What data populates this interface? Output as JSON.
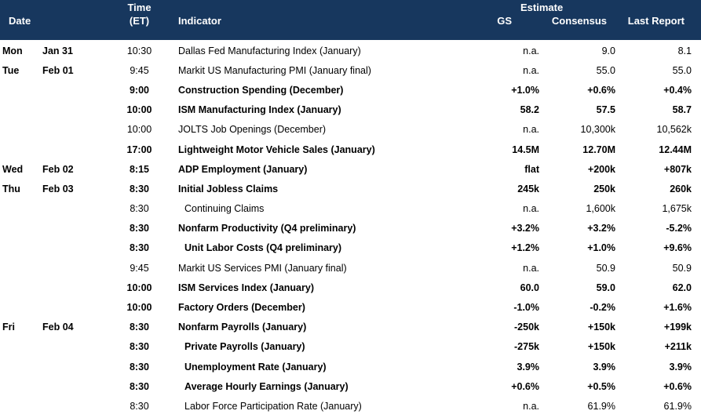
{
  "header": {
    "date": "Date",
    "time_line1": "Time",
    "time_line2": "(ET)",
    "indicator": "Indicator",
    "estimate": "Estimate",
    "gs": "GS",
    "consensus": "Consensus",
    "last_report": "Last Report"
  },
  "rows": [
    {
      "day": "Mon",
      "date": "Jan 31",
      "time": "10:30",
      "indicator": "Dallas Fed Manufacturing Index (January)",
      "gs": "n.a.",
      "consensus": "9.0",
      "last": "8.1"
    },
    {
      "day": "Tue",
      "date": "Feb 01",
      "time": "9:45",
      "indicator": "Markit US Manufacturing PMI (January final)",
      "gs": "n.a.",
      "consensus": "55.0",
      "last": "55.0"
    },
    {
      "day": "",
      "date": "",
      "time": "9:00",
      "indicator": "Construction Spending (December)",
      "gs": "+1.0%",
      "consensus": "+0.6%",
      "last": "+0.4%"
    },
    {
      "day": "",
      "date": "",
      "time": "10:00",
      "indicator": "ISM Manufacturing Index (January)",
      "gs": "58.2",
      "consensus": "57.5",
      "last": "58.7"
    },
    {
      "day": "",
      "date": "",
      "time": "10:00",
      "indicator": "JOLTS Job Openings (December)",
      "gs": "n.a.",
      "consensus": "10,300k",
      "last": "10,562k"
    },
    {
      "day": "",
      "date": "",
      "time": "17:00",
      "indicator": "Lightweight Motor Vehicle Sales (January)",
      "gs": "14.5M",
      "consensus": "12.70M",
      "last": "12.44M"
    },
    {
      "day": "Wed",
      "date": "Feb 02",
      "time": "8:15",
      "indicator": "ADP Employment (January)",
      "gs": "flat",
      "consensus": "+200k",
      "last": "+807k"
    },
    {
      "day": "Thu",
      "date": "Feb 03",
      "time": "8:30",
      "indicator": "Initial Jobless Claims",
      "gs": "245k",
      "consensus": "250k",
      "last": "260k"
    },
    {
      "day": "",
      "date": "",
      "time": "8:30",
      "indicator": "Continuing Claims",
      "gs": "n.a.",
      "consensus": "1,600k",
      "last": "1,675k"
    },
    {
      "day": "",
      "date": "",
      "time": "8:30",
      "indicator": "Nonfarm Productivity (Q4 preliminary)",
      "gs": "+3.2%",
      "consensus": "+3.2%",
      "last": "-5.2%"
    },
    {
      "day": "",
      "date": "",
      "time": "8:30",
      "indicator": "Unit Labor Costs (Q4 preliminary)",
      "gs": "+1.2%",
      "consensus": "+1.0%",
      "last": "+9.6%"
    },
    {
      "day": "",
      "date": "",
      "time": "9:45",
      "indicator": "Markit US Services PMI (January final)",
      "gs": "n.a.",
      "consensus": "50.9",
      "last": "50.9"
    },
    {
      "day": "",
      "date": "",
      "time": "10:00",
      "indicator": "ISM Services Index (January)",
      "gs": "60.0",
      "consensus": "59.0",
      "last": "62.0"
    },
    {
      "day": "",
      "date": "",
      "time": "10:00",
      "indicator": "Factory Orders (December)",
      "gs": "-1.0%",
      "consensus": "-0.2%",
      "last": "+1.6%"
    },
    {
      "day": "Fri",
      "date": "Feb 04",
      "time": "8:30",
      "indicator": "Nonfarm Payrolls (January)",
      "gs": "-250k",
      "consensus": "+150k",
      "last": "+199k"
    },
    {
      "day": "",
      "date": "",
      "time": "8:30",
      "indicator": "Private Payrolls (January)",
      "gs": "-275k",
      "consensus": "+150k",
      "last": "+211k"
    },
    {
      "day": "",
      "date": "",
      "time": "8:30",
      "indicator": "Unemployment Rate (January)",
      "gs": "3.9%",
      "consensus": "3.9%",
      "last": "3.9%"
    },
    {
      "day": "",
      "date": "",
      "time": "8:30",
      "indicator": "Average Hourly Earnings (January)",
      "gs": "+0.6%",
      "consensus": "+0.5%",
      "last": "+0.6%"
    },
    {
      "day": "",
      "date": "",
      "time": "8:30",
      "indicator": "Labor Force Participation Rate (January)",
      "gs": "n.a.",
      "consensus": "61.9%",
      "last": "61.9%"
    }
  ]
}
